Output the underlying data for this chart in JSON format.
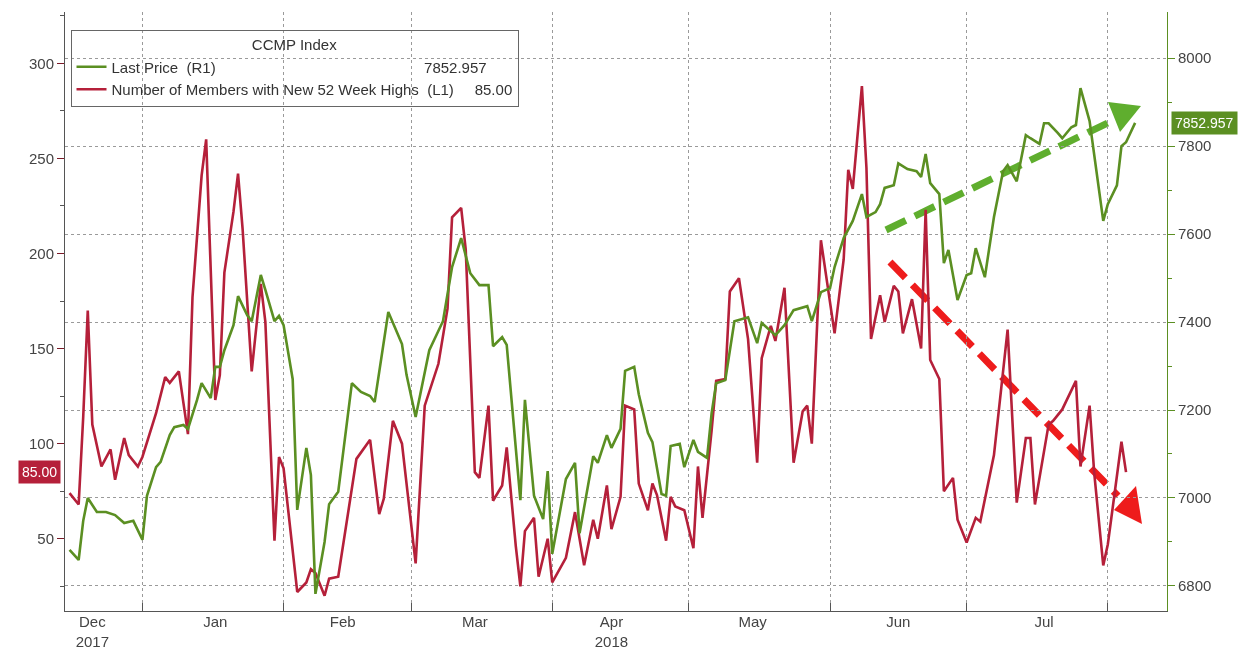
{
  "chart_data": {
    "type": "line",
    "legend_title": "CCMP Index",
    "legend": "top left",
    "grid": true,
    "marker": "none",
    "line_style": "solid",
    "annotations": [
      "7852.957",
      "85.00"
    ],
    "xlim": [
      "2017-12-15",
      "2018-08-14"
    ],
    "xticks": [
      {
        "value": "2017-12-21",
        "label": "Dec\n2017"
      },
      {
        "value": "2018-01-01",
        "label": null
      },
      {
        "value": "2018-01-17",
        "label": "Jan"
      },
      {
        "value": "2018-02-01",
        "label": null
      },
      {
        "value": "2018-02-14",
        "label": "Feb"
      },
      {
        "value": "2018-03-01",
        "label": null
      },
      {
        "value": "2018-03-15",
        "label": "Mar"
      },
      {
        "value": "2018-04-01",
        "label": null
      },
      {
        "value": "2018-04-14",
        "label": "Apr\n2018"
      },
      {
        "value": "2018-05-01",
        "label": null
      },
      {
        "value": "2018-05-15",
        "label": "May"
      },
      {
        "value": "2018-06-01",
        "label": null
      },
      {
        "value": "2018-06-16",
        "label": "Jun"
      },
      {
        "value": "2018-07-01",
        "label": null
      },
      {
        "value": "2018-07-18",
        "label": "Jul"
      },
      {
        "value": "2018-08-01",
        "label": null
      }
    ],
    "ylim": [
      12,
      327
    ],
    "yticks": [
      {
        "value": 25,
        "label": null
      },
      50,
      {
        "value": 75,
        "label": null
      },
      100,
      {
        "value": 125,
        "label": null
      },
      150,
      {
        "value": 175,
        "label": null
      },
      200,
      {
        "value": 225,
        "label": null
      },
      250,
      {
        "value": 275,
        "label": null
      },
      300,
      {
        "value": 325,
        "label": null
      }
    ],
    "y2lim": [
      6743,
      8105
    ],
    "y2ticks": [
      6800,
      {
        "value": 6900,
        "label": null
      },
      7000,
      {
        "value": 7100,
        "label": null
      },
      7200,
      {
        "value": 7300,
        "label": null
      },
      7400,
      {
        "value": 7500,
        "label": null
      },
      7600,
      {
        "value": 7700,
        "label": null
      },
      7800,
      {
        "value": 7900,
        "label": null
      },
      8000
    ],
    "series": [
      {
        "name": "Last Price  (R1)                                                  7852.957",
        "color": "#5b8f22",
        "axis": "y2",
        "x": [
          "2017-12-16",
          "2017-12-18",
          "2017-12-19",
          "2017-12-20",
          "2017-12-22",
          "2017-12-24",
          "2017-12-26",
          "2017-12-28",
          "2017-12-30",
          "2018-01-01",
          "2018-01-02",
          "2018-01-04",
          "2018-01-05",
          "2018-01-07",
          "2018-01-08",
          "2018-01-10",
          "2018-01-11",
          "2018-01-13",
          "2018-01-14",
          "2018-01-16",
          "2018-01-17",
          "2018-01-18",
          "2018-01-19",
          "2018-01-21",
          "2018-01-22",
          "2018-01-24",
          "2018-01-25",
          "2018-01-27",
          "2018-01-28",
          "2018-01-30",
          "2018-01-31",
          "2018-02-01",
          "2018-02-03",
          "2018-02-04",
          "2018-02-06",
          "2018-02-07",
          "2018-02-08",
          "2018-02-10",
          "2018-02-11",
          "2018-02-13",
          "2018-02-16",
          "2018-02-18",
          "2018-02-20",
          "2018-02-21",
          "2018-02-24",
          "2018-02-27",
          "2018-02-28",
          "2018-03-02",
          "2018-03-05",
          "2018-03-08",
          "2018-03-10",
          "2018-03-12",
          "2018-03-14",
          "2018-03-16",
          "2018-03-18",
          "2018-03-19",
          "2018-03-21",
          "2018-03-22",
          "2018-03-25",
          "2018-03-26",
          "2018-03-28",
          "2018-03-30",
          "2018-03-31",
          "2018-04-01",
          "2018-04-04",
          "2018-04-06",
          "2018-04-07",
          "2018-04-10",
          "2018-04-11",
          "2018-04-13",
          "2018-04-14",
          "2018-04-16",
          "2018-04-17",
          "2018-04-19",
          "2018-04-20",
          "2018-04-22",
          "2018-04-23",
          "2018-04-25",
          "2018-04-26",
          "2018-04-27",
          "2018-04-29",
          "2018-04-30",
          "2018-05-02",
          "2018-05-03",
          "2018-05-05",
          "2018-05-06",
          "2018-05-07",
          "2018-05-09",
          "2018-05-11",
          "2018-05-14",
          "2018-05-16",
          "2018-05-17",
          "2018-05-20",
          "2018-05-22",
          "2018-05-24",
          "2018-05-27",
          "2018-05-28",
          "2018-05-30",
          "2018-06-01",
          "2018-06-02",
          "2018-06-04",
          "2018-06-06",
          "2018-06-08",
          "2018-06-09",
          "2018-06-11",
          "2018-06-12",
          "2018-06-13",
          "2018-06-15",
          "2018-06-16",
          "2018-06-18",
          "2018-06-20",
          "2018-06-21",
          "2018-06-22",
          "2018-06-23",
          "2018-06-25",
          "2018-06-26",
          "2018-06-27",
          "2018-06-29",
          "2018-07-01",
          "2018-07-02",
          "2018-07-03",
          "2018-07-05",
          "2018-07-07",
          "2018-07-09",
          "2018-07-10",
          "2018-07-12",
          "2018-07-14",
          "2018-07-15",
          "2018-07-17",
          "2018-07-18",
          "2018-07-19",
          "2018-07-21",
          "2018-07-22",
          "2018-07-24",
          "2018-07-25",
          "2018-07-26",
          "2018-07-28",
          "2018-07-31",
          "2018-08-01",
          "2018-08-03",
          "2018-08-04",
          "2018-08-05",
          "2018-08-07"
        ],
        "values": [
          6882,
          6859,
          6948,
          7000,
          6968,
          6968,
          6961,
          6943,
          6948,
          6905,
          7005,
          7070,
          7082,
          7143,
          7161,
          7166,
          7157,
          7223,
          7261,
          7227,
          7298,
          7298,
          7336,
          7393,
          7459,
          7416,
          7402,
          7507,
          7473,
          7402,
          7414,
          7393,
          7270,
          6973,
          7114,
          7052,
          6782,
          6900,
          6986,
          7014,
          7261,
          7241,
          7232,
          7218,
          7423,
          7350,
          7280,
          7184,
          7336,
          7402,
          7525,
          7591,
          7511,
          7484,
          7484,
          7345,
          7366,
          7348,
          6995,
          7223,
          7005,
          6952,
          7061,
          6873,
          7043,
          7080,
          6920,
          7095,
          7080,
          7143,
          7114,
          7157,
          7289,
          7298,
          7236,
          7148,
          7127,
          7009,
          7005,
          7118,
          7123,
          7070,
          7132,
          7105,
          7091,
          7193,
          7261,
          7268,
          7402,
          7411,
          7352,
          7398,
          7370,
          7393,
          7427,
          7436,
          7402,
          7468,
          7477,
          7525,
          7591,
          7630,
          7691,
          7639,
          7650,
          7668,
          7705,
          7711,
          7761,
          7748,
          7743,
          7730,
          7782,
          7716,
          7691,
          7534,
          7564,
          7450,
          7507,
          7511,
          7568,
          7502,
          7639,
          7743,
          7757,
          7720,
          7825,
          7818,
          7805,
          7852,
          7852,
          7830,
          7818,
          7843,
          7848,
          7932,
          7857,
          7630,
          7668,
          7711,
          7800,
          7809,
          7853
        ]
      },
      {
        "name": "Number of Members with New 52 Week Highs  (L1)     85.00",
        "color": "#b5203a",
        "axis": "y",
        "x": [
          "2017-12-16",
          "2017-12-18",
          "2017-12-19",
          "2017-12-20",
          "2017-12-21",
          "2017-12-23",
          "2017-12-25",
          "2017-12-26",
          "2017-12-28",
          "2017-12-29",
          "2017-12-31",
          "2018-01-01",
          "2018-01-04",
          "2018-01-06",
          "2018-01-07",
          "2018-01-09",
          "2018-01-11",
          "2018-01-12",
          "2018-01-14",
          "2018-01-15",
          "2018-01-17",
          "2018-01-18",
          "2018-01-19",
          "2018-01-21",
          "2018-01-22",
          "2018-01-23",
          "2018-01-25",
          "2018-01-27",
          "2018-01-28",
          "2018-01-30",
          "2018-01-31",
          "2018-02-01",
          "2018-02-04",
          "2018-02-06",
          "2018-02-07",
          "2018-02-08",
          "2018-02-10",
          "2018-02-11",
          "2018-02-13",
          "2018-02-17",
          "2018-02-20",
          "2018-02-22",
          "2018-02-23",
          "2018-02-25",
          "2018-02-27",
          "2018-03-02",
          "2018-03-04",
          "2018-03-07",
          "2018-03-09",
          "2018-03-10",
          "2018-03-12",
          "2018-03-13",
          "2018-03-15",
          "2018-03-16",
          "2018-03-18",
          "2018-03-19",
          "2018-03-21",
          "2018-03-22",
          "2018-03-24",
          "2018-03-25",
          "2018-03-26",
          "2018-03-28",
          "2018-03-29",
          "2018-03-31",
          "2018-04-01",
          "2018-04-04",
          "2018-04-06",
          "2018-04-07",
          "2018-04-08",
          "2018-04-10",
          "2018-04-11",
          "2018-04-13",
          "2018-04-14",
          "2018-04-16",
          "2018-04-17",
          "2018-04-19",
          "2018-04-20",
          "2018-04-22",
          "2018-04-23",
          "2018-04-24",
          "2018-04-26",
          "2018-04-27",
          "2018-04-28",
          "2018-04-30",
          "2018-05-02",
          "2018-05-03",
          "2018-05-04",
          "2018-05-06",
          "2018-05-07",
          "2018-05-09",
          "2018-05-10",
          "2018-05-12",
          "2018-05-14",
          "2018-05-16",
          "2018-05-17",
          "2018-05-19",
          "2018-05-20",
          "2018-05-22",
          "2018-05-24",
          "2018-05-26",
          "2018-05-27",
          "2018-05-28",
          "2018-05-30",
          "2018-06-02",
          "2018-06-04",
          "2018-06-05",
          "2018-06-06",
          "2018-06-08",
          "2018-06-09",
          "2018-06-10",
          "2018-06-12",
          "2018-06-13",
          "2018-06-15",
          "2018-06-16",
          "2018-06-17",
          "2018-06-19",
          "2018-06-21",
          "2018-06-22",
          "2018-06-23",
          "2018-06-25",
          "2018-06-26",
          "2018-06-28",
          "2018-06-29",
          "2018-07-01",
          "2018-07-03",
          "2018-07-04",
          "2018-07-07",
          "2018-07-10",
          "2018-07-12",
          "2018-07-14",
          "2018-07-15",
          "2018-07-16",
          "2018-07-19",
          "2018-07-20",
          "2018-07-22",
          "2018-07-23",
          "2018-07-25",
          "2018-07-26",
          "2018-07-28",
          "2018-07-29",
          "2018-07-31",
          "2018-08-01",
          "2018-08-02",
          "2018-08-04",
          "2018-08-05"
        ],
        "values": [
          74,
          68,
          114,
          170,
          110,
          88,
          97,
          81,
          103,
          94,
          88,
          93,
          116,
          135,
          132,
          138,
          105,
          177,
          241,
          260,
          123,
          136,
          190,
          222,
          242,
          213,
          138,
          184,
          164,
          49,
          93,
          87,
          22,
          27,
          34,
          32,
          20,
          29,
          30,
          92,
          102,
          63,
          71,
          112,
          100,
          37,
          120,
          142,
          171,
          219,
          224,
          202,
          85,
          82,
          120,
          70,
          78,
          98,
          46,
          25,
          54,
          61,
          30,
          50,
          27,
          40,
          64,
          50,
          36,
          60,
          50,
          78,
          55,
          72,
          120,
          118,
          79,
          65,
          79,
          73,
          49,
          72,
          67,
          65,
          45,
          88,
          61,
          107,
          133,
          134,
          180,
          187,
          155,
          90,
          145,
          162,
          154,
          182,
          90,
          117,
          120,
          100,
          207,
          158,
          197,
          244,
          234,
          288,
          245,
          155,
          178,
          164,
          183,
          180,
          158,
          176,
          150,
          223,
          144,
          134,
          75,
          82,
          60,
          48,
          61,
          59,
          94,
          160,
          69,
          103,
          103,
          68,
          110,
          112,
          118,
          123,
          133,
          88,
          120,
          85,
          36,
          47,
          65,
          101,
          85
        ]
      }
    ]
  }
}
